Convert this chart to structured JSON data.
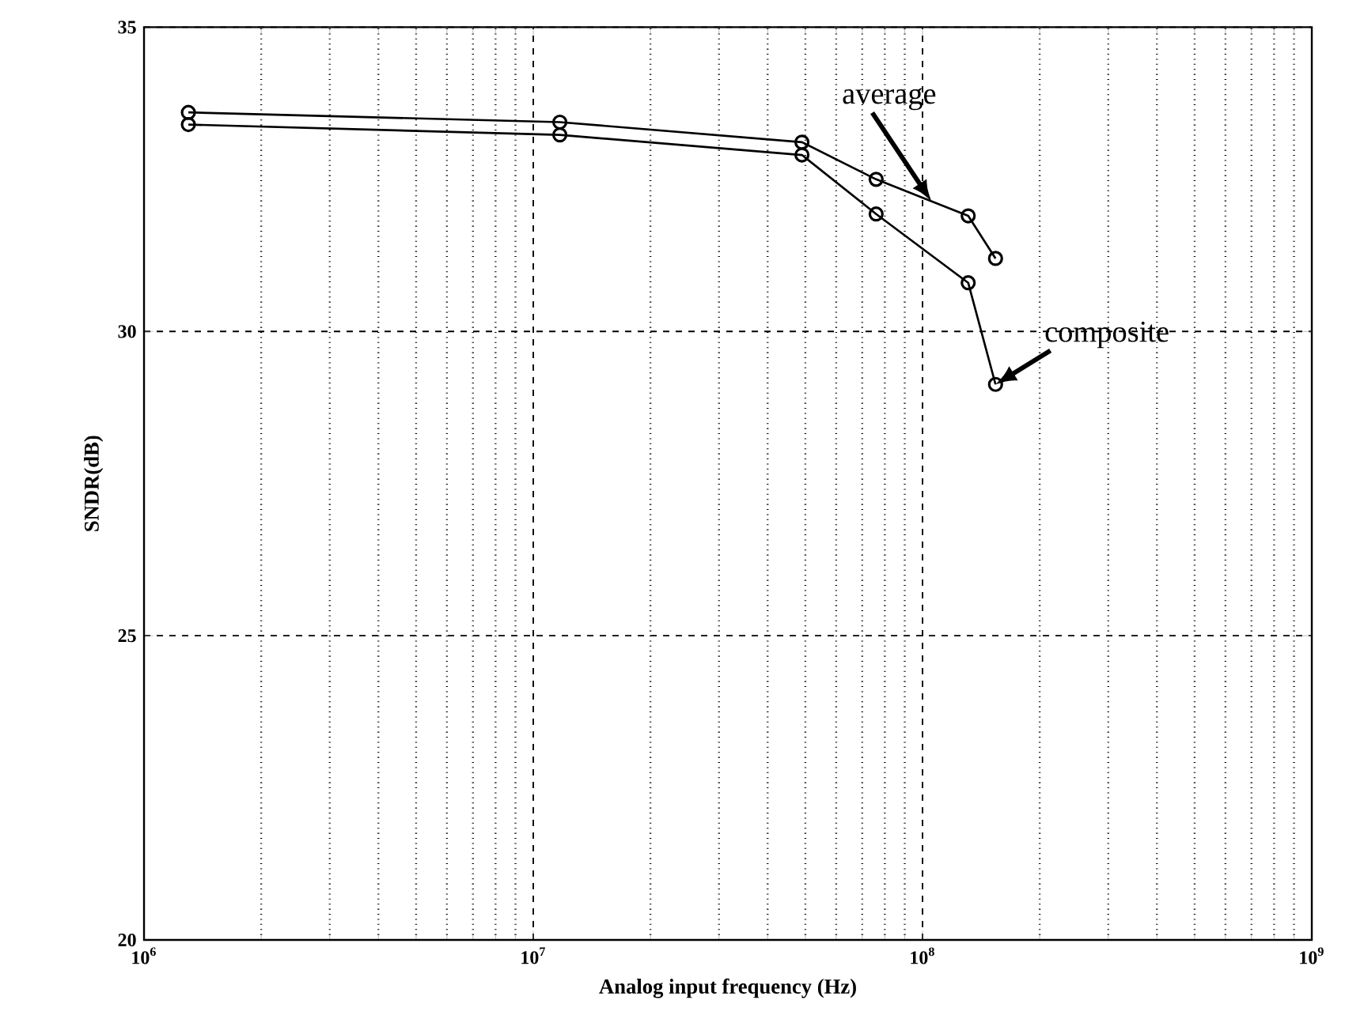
{
  "chart_data": {
    "type": "line",
    "xlabel": "Analog input frequency (Hz)",
    "ylabel": "SNDR(dB)",
    "x": [
      1300000,
      11700000,
      49000000,
      76000000,
      131000000,
      154000000
    ],
    "series": [
      {
        "name": "average",
        "color": "#000000",
        "marker": "circle",
        "values": [
          33.6,
          33.44,
          33.11,
          32.5,
          31.9,
          31.2
        ]
      },
      {
        "name": "composite",
        "color": "#000000",
        "marker": "circle",
        "values": [
          33.4,
          33.23,
          32.9,
          31.93,
          30.8,
          29.13
        ]
      }
    ],
    "log": "x",
    "xlim": [
      1000000,
      1000000000
    ],
    "ylim": [
      20,
      35
    ],
    "xticks": [
      {
        "value": 1000000,
        "label": "10$^{6}$"
      },
      {
        "value": 10000000,
        "label": "10$^{7}$"
      },
      {
        "value": 100000000,
        "label": "10$^{8}$"
      },
      {
        "value": 1000000000,
        "label": "10$^{9}$"
      }
    ],
    "yticks": [
      20,
      25,
      30,
      35
    ],
    "grid": true,
    "legend": false,
    "line_style": "solid"
  }
}
